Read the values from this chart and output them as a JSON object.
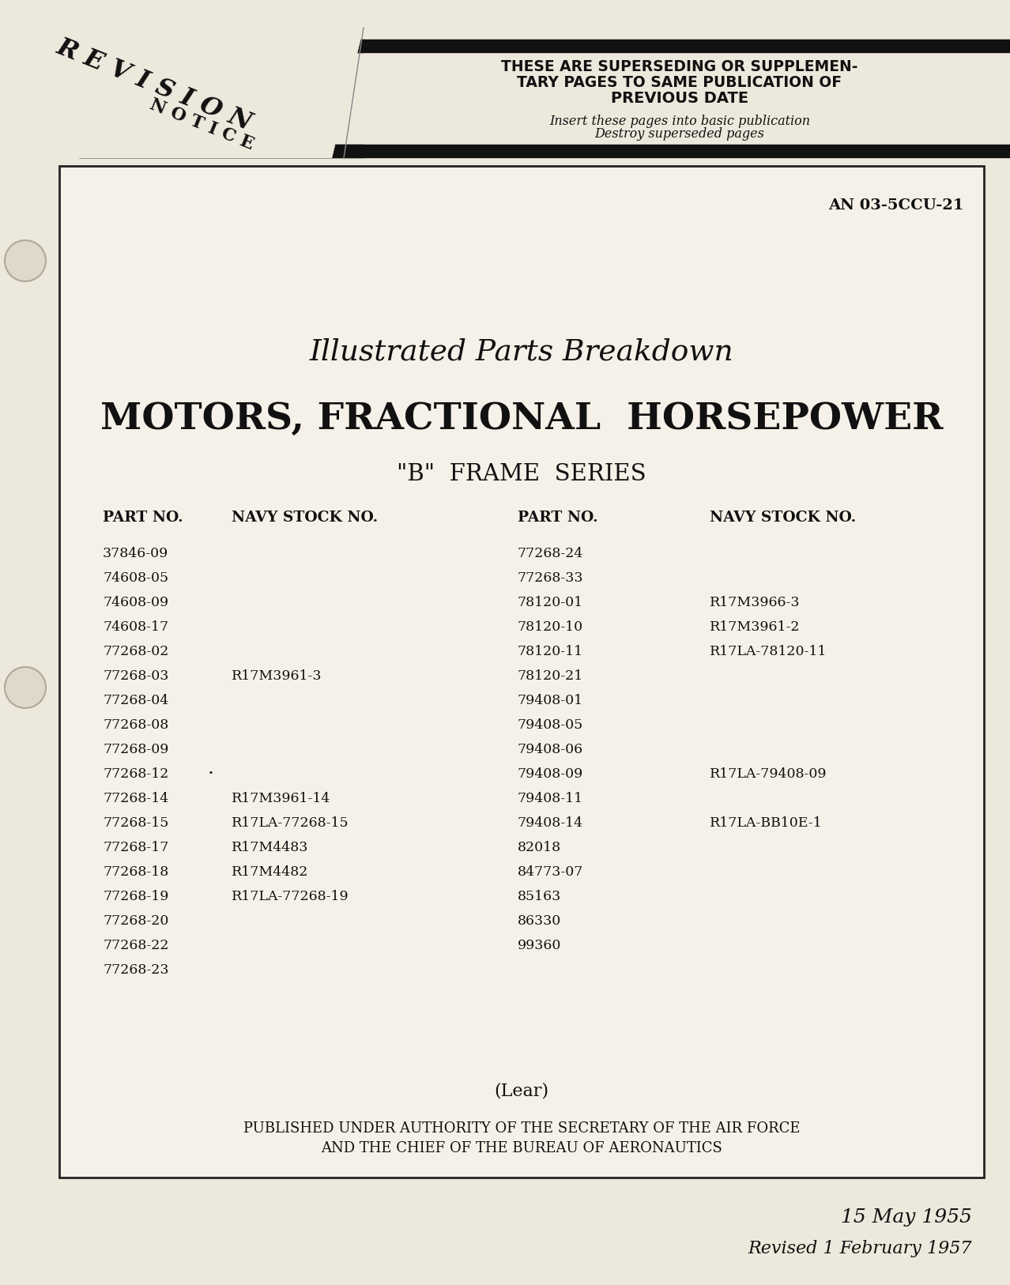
{
  "page_bg": "#ede8dc",
  "inner_bg": "#f5f1e8",
  "doc_number": "AN 03-5CCU-21",
  "title_line1": "Illustrated Parts Breakdown",
  "title_line2": "MOTORS, FRACTIONAL  HORSEPOWER",
  "title_line3": "\"B\"  FRAME  SERIES",
  "revision_text1": "THESE ARE SUPERSEDING OR SUPPLEMEN-",
  "revision_text2": "TARY PAGES TO SAME PUBLICATION OF",
  "revision_text3": "PREVIOUS DATE",
  "revision_text4": "Insert these pages into basic publication",
  "revision_text5": "Destroy superseded pages",
  "col_headers": [
    "PART NO.",
    "NAVY STOCK NO.",
    "PART NO.",
    "NAVY STOCK NO."
  ],
  "left_parts": [
    [
      "37846-09",
      ""
    ],
    [
      "74608-05",
      ""
    ],
    [
      "74608-09",
      ""
    ],
    [
      "74608-17",
      ""
    ],
    [
      "77268-02",
      ""
    ],
    [
      "77268-03",
      "R17M3961-3"
    ],
    [
      "77268-04",
      ""
    ],
    [
      "77268-08",
      ""
    ],
    [
      "77268-09",
      ""
    ],
    [
      "77268-12",
      ""
    ],
    [
      "77268-14",
      "R17M3961-14"
    ],
    [
      "77268-15",
      "R17LA-77268-15"
    ],
    [
      "77268-17",
      "R17M4483"
    ],
    [
      "77268-18",
      "R17M4482"
    ],
    [
      "77268-19",
      "R17LA-77268-19"
    ],
    [
      "77268-20",
      ""
    ],
    [
      "77268-22",
      ""
    ],
    [
      "77268-23",
      ""
    ]
  ],
  "right_parts": [
    [
      "77268-24",
      ""
    ],
    [
      "77268-33",
      ""
    ],
    [
      "78120-01",
      "R17M3966-3"
    ],
    [
      "78120-10",
      "R17M3961-2"
    ],
    [
      "78120-11",
      "R17LA-78120-11"
    ],
    [
      "78120-21",
      ""
    ],
    [
      "79408-01",
      ""
    ],
    [
      "79408-05",
      ""
    ],
    [
      "79408-06",
      ""
    ],
    [
      "79408-09",
      "R17LA-79408-09"
    ],
    [
      "79408-11",
      ""
    ],
    [
      "79408-14",
      "R17LA-BB10E-1"
    ],
    [
      "82018",
      ""
    ],
    [
      "84773-07",
      ""
    ],
    [
      "85163",
      ""
    ],
    [
      "86330",
      ""
    ],
    [
      "99360",
      ""
    ],
    [
      "",
      ""
    ]
  ],
  "lear_text": "(Lear)",
  "published_text1": "PUBLISHED UNDER AUTHORITY OF THE SECRETARY OF THE AIR FORCE",
  "published_text2": "AND THE CHIEF OF THE BUREAU OF AERONAUTICS",
  "date_text1": "15 May 1955",
  "date_text2": "Revised 1 February 1957"
}
